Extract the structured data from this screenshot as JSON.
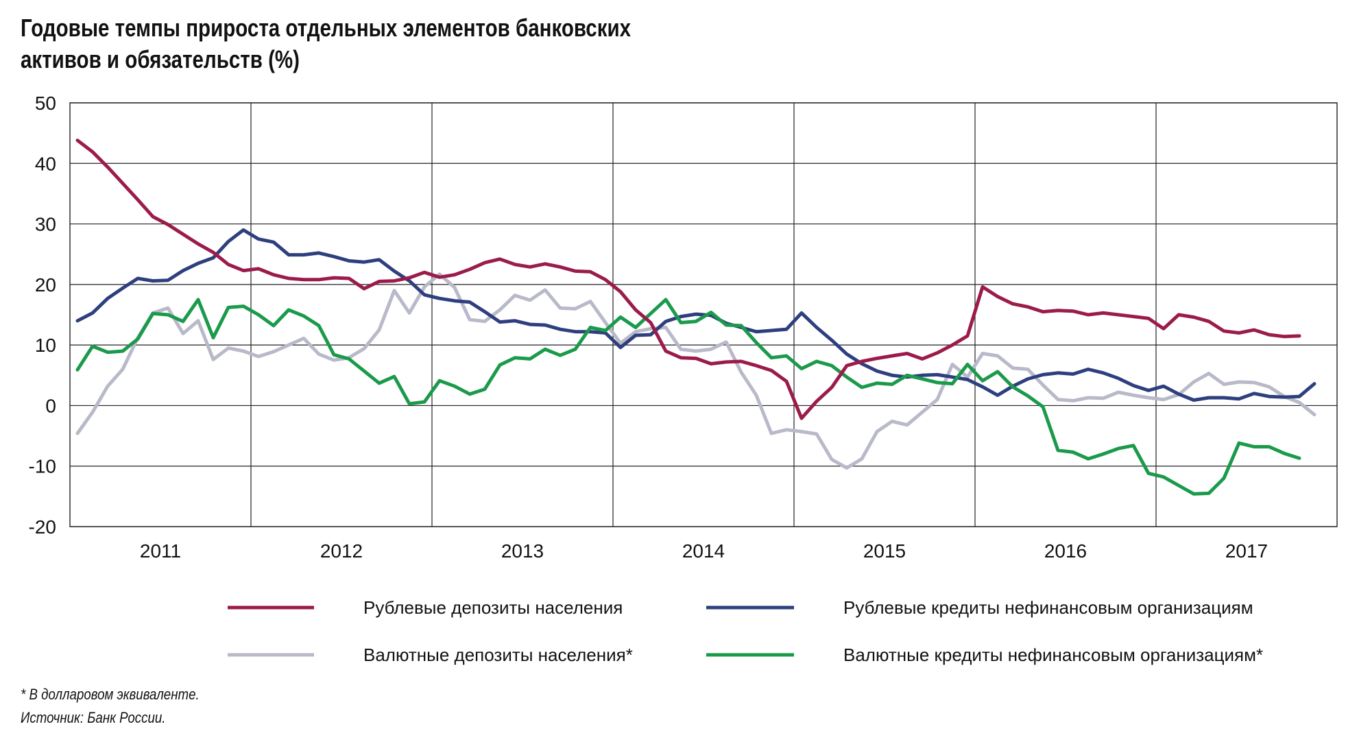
{
  "title_line1": "Годовые темпы прироста отдельных элементов банковских",
  "title_line2": "активов и обязательств (%)",
  "footnote": "* В долларовом эквиваленте.",
  "source": "Источник: Банк России.",
  "colors": {
    "rub_deposits": "#9b1b4b",
    "rub_loans": "#2e3f7f",
    "fx_deposits": "#b8b9c9",
    "fx_loans": "#1a9a4a"
  },
  "chart_data": {
    "type": "line",
    "title": "Годовые темпы прироста отдельных элементов банковских активов и обязательств (%)",
    "xlabel": "",
    "ylabel": "",
    "x_start": "2011-01",
    "x_step": "month",
    "x_ticks": [
      "2011",
      "2012",
      "2013",
      "2014",
      "2015",
      "2016",
      "2017"
    ],
    "xlim": [
      "2011-01",
      "2017-12"
    ],
    "ylim": [
      -20,
      50
    ],
    "y_ticks": [
      50,
      40,
      30,
      20,
      10,
      0,
      -10,
      -20
    ],
    "grid": true,
    "legend_position": "bottom",
    "series": [
      {
        "name": "Рублевые депозиты населения",
        "color_key": "rub_deposits",
        "values": [
          43.8,
          41.9,
          39.4,
          36.7,
          34.0,
          31.2,
          29.9,
          28.3,
          26.7,
          25.3,
          23.3,
          22.3,
          22.6,
          21.6,
          21.0,
          20.8,
          20.8,
          21.1,
          21.0,
          19.3,
          20.5,
          20.6,
          21.1,
          22.0,
          21.2,
          21.6,
          22.5,
          23.6,
          24.2,
          23.3,
          22.9,
          23.4,
          22.9,
          22.2,
          22.1,
          20.8,
          18.8,
          15.8,
          13.7,
          9.0,
          7.9,
          7.8,
          6.9,
          7.2,
          7.3,
          6.6,
          5.8,
          4.0,
          -2.1,
          0.7,
          3.0,
          6.6,
          7.3,
          7.8,
          8.2,
          8.6,
          7.7,
          8.7,
          10.0,
          11.5,
          19.6,
          18.0,
          16.8,
          16.3,
          15.5,
          15.7,
          15.6,
          15.0,
          15.3,
          15.0,
          14.7,
          14.4,
          12.7,
          15.0,
          14.6,
          13.9,
          12.3,
          12.0,
          12.5,
          11.7,
          11.4,
          11.5
        ]
      },
      {
        "name": "Рублевые кредиты нефинансовым организациям",
        "color_key": "rub_loans",
        "values": [
          14.0,
          15.3,
          17.7,
          19.4,
          21.0,
          20.6,
          20.7,
          22.3,
          23.5,
          24.4,
          27.1,
          29.0,
          27.5,
          27.0,
          24.9,
          24.9,
          25.2,
          24.6,
          23.9,
          23.7,
          24.1,
          22.2,
          20.6,
          18.3,
          17.7,
          17.3,
          17.1,
          15.5,
          13.8,
          14.0,
          13.4,
          13.3,
          12.6,
          12.2,
          12.2,
          12.0,
          9.6,
          11.6,
          11.7,
          13.9,
          14.7,
          15.1,
          14.9,
          13.6,
          12.9,
          12.2,
          12.4,
          12.6,
          15.3,
          12.9,
          10.8,
          8.5,
          6.9,
          5.7,
          5.0,
          4.7,
          5.0,
          5.1,
          4.7,
          4.3,
          3.1,
          1.7,
          3.2,
          4.4,
          5.1,
          5.4,
          5.2,
          6.0,
          5.4,
          4.5,
          3.3,
          2.5,
          3.2,
          1.9,
          0.9,
          1.3,
          1.3,
          1.1,
          2.0,
          1.5,
          1.4,
          1.5,
          3.6
        ]
      },
      {
        "name": "Валютные депозиты населения*",
        "color_key": "fx_deposits",
        "values": [
          -4.6,
          -1.1,
          3.2,
          6.0,
          11.2,
          15.3,
          16.1,
          11.9,
          14.0,
          7.6,
          9.5,
          9.0,
          8.1,
          8.9,
          10.0,
          11.1,
          8.5,
          7.5,
          7.9,
          9.4,
          12.5,
          19.0,
          15.3,
          19.6,
          21.7,
          19.5,
          14.2,
          13.9,
          15.8,
          18.2,
          17.4,
          19.1,
          16.1,
          16.0,
          17.2,
          13.7,
          10.3,
          12.2,
          12.7,
          12.9,
          9.3,
          9.0,
          9.3,
          10.5,
          5.5,
          1.7,
          -4.6,
          -4.0,
          -4.3,
          -4.7,
          -8.9,
          -10.3,
          -8.8,
          -4.3,
          -2.6,
          -3.2,
          -1.1,
          1.0,
          6.8,
          4.7,
          8.6,
          8.2,
          6.2,
          6.0,
          3.4,
          1.0,
          0.8,
          1.3,
          1.2,
          2.2,
          1.7,
          1.3,
          1.0,
          1.8,
          3.9,
          5.3,
          3.5,
          3.9,
          3.8,
          3.1,
          1.5,
          0.5,
          -1.5
        ]
      },
      {
        "name": "Валютные кредиты нефинансовым организациям*",
        "color_key": "fx_loans",
        "values": [
          5.9,
          9.8,
          8.8,
          9.0,
          11.0,
          15.2,
          15.0,
          13.9,
          17.5,
          11.2,
          16.2,
          16.4,
          15.0,
          13.2,
          15.8,
          14.8,
          13.2,
          8.4,
          7.7,
          5.7,
          3.7,
          4.8,
          0.3,
          0.6,
          4.1,
          3.2,
          1.9,
          2.7,
          6.7,
          7.9,
          7.7,
          9.3,
          8.3,
          9.3,
          12.9,
          12.4,
          14.6,
          12.9,
          15.2,
          17.5,
          13.7,
          13.9,
          15.4,
          13.3,
          13.2,
          10.4,
          7.9,
          8.2,
          6.1,
          7.3,
          6.6,
          4.7,
          3.0,
          3.7,
          3.5,
          5.0,
          4.4,
          3.8,
          3.6,
          6.8,
          4.1,
          5.6,
          3.1,
          1.6,
          -0.2,
          -7.4,
          -7.7,
          -8.8,
          -8.0,
          -7.1,
          -6.6,
          -11.2,
          -11.8,
          -13.2,
          -14.6,
          -14.5,
          -12.0,
          -6.2,
          -6.8,
          -6.8,
          -7.9,
          -8.7
        ]
      }
    ]
  }
}
